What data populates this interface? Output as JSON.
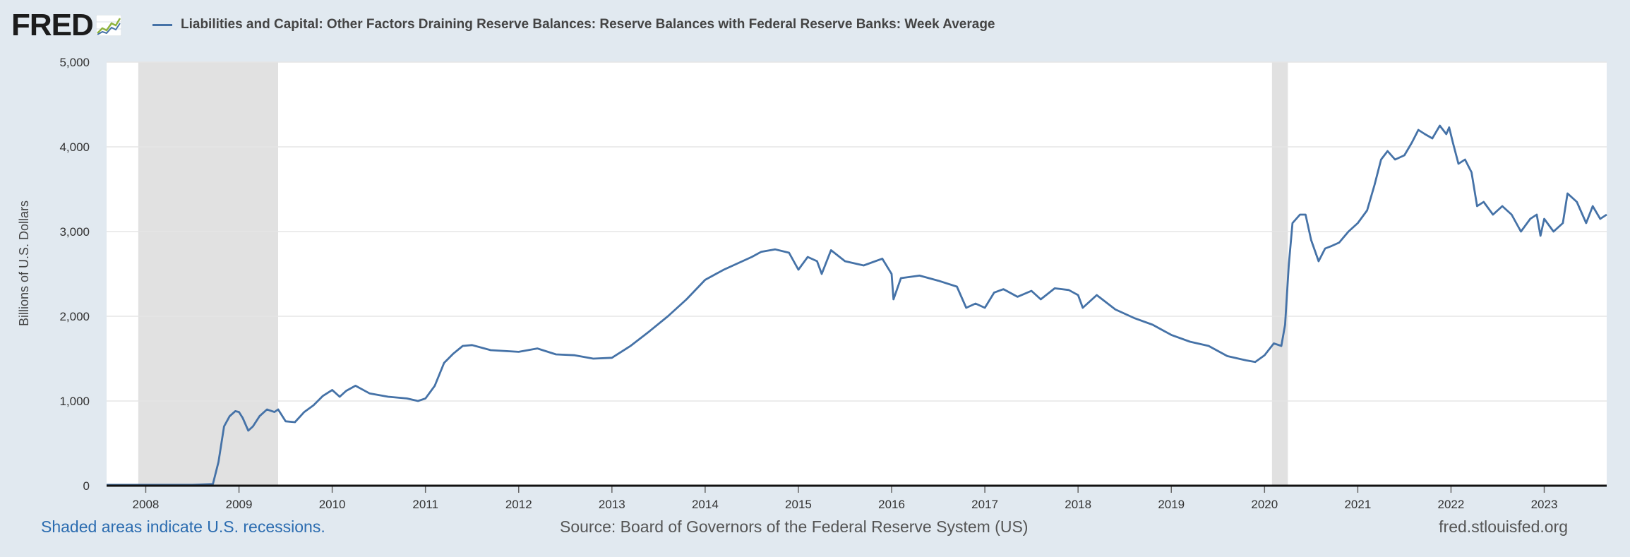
{
  "header": {
    "logo_text": "FRED",
    "series_title": "Liabilities and Capital: Other Factors Draining Reserve Balances: Reserve Balances with Federal Reserve Banks: Week Average"
  },
  "footer": {
    "recession_note": "Shaded areas indicate U.S. recessions.",
    "source": "Source: Board of Governors of the Federal Reserve System (US)",
    "site": "fred.stlouisfed.org"
  },
  "colors": {
    "background": "#e1e9f0",
    "plot_background": "#ffffff",
    "series_line": "#4572a7",
    "recession_shade": "#e1e1e1",
    "gridline": "#e6e6e6"
  },
  "chart_data": {
    "type": "line",
    "title": "Liabilities and Capital: Other Factors Draining Reserve Balances: Reserve Balances with Federal Reserve Banks: Week Average",
    "xlabel": "",
    "ylabel": "Billions of U.S. Dollars",
    "xlim": [
      2007.58,
      2023.67
    ],
    "ylim": [
      0,
      5000
    ],
    "grid": true,
    "x_ticks": [
      2008,
      2009,
      2010,
      2011,
      2012,
      2013,
      2014,
      2015,
      2016,
      2017,
      2018,
      2019,
      2020,
      2021,
      2022,
      2023
    ],
    "x_tick_labels": [
      "2008",
      "2009",
      "2010",
      "2011",
      "2012",
      "2013",
      "2014",
      "2015",
      "2016",
      "2017",
      "2018",
      "2019",
      "2020",
      "2021",
      "2022",
      "2023"
    ],
    "y_ticks": [
      0,
      1000,
      2000,
      3000,
      4000,
      5000
    ],
    "y_tick_labels": [
      "0",
      "1,000",
      "2,000",
      "3,000",
      "4,000",
      "5,000"
    ],
    "recessions": [
      [
        2007.92,
        2009.42
      ],
      [
        2020.08,
        2020.25
      ]
    ],
    "series": [
      {
        "name": "Liabilities and Capital: Other Factors Draining Reserve Balances: Reserve Balances with Federal Reserve Banks: Week Average",
        "x": [
          2007.58,
          2008.0,
          2008.5,
          2008.72,
          2008.78,
          2008.84,
          2008.9,
          2008.96,
          2009.0,
          2009.04,
          2009.1,
          2009.15,
          2009.22,
          2009.3,
          2009.38,
          2009.42,
          2009.5,
          2009.6,
          2009.7,
          2009.8,
          2009.9,
          2010.0,
          2010.08,
          2010.15,
          2010.25,
          2010.4,
          2010.6,
          2010.8,
          2010.92,
          2011.0,
          2011.1,
          2011.2,
          2011.3,
          2011.4,
          2011.5,
          2011.7,
          2012.0,
          2012.2,
          2012.4,
          2012.6,
          2012.8,
          2013.0,
          2013.2,
          2013.4,
          2013.6,
          2013.8,
          2014.0,
          2014.2,
          2014.4,
          2014.5,
          2014.6,
          2014.75,
          2014.9,
          2015.0,
          2015.1,
          2015.2,
          2015.25,
          2015.35,
          2015.5,
          2015.7,
          2015.9,
          2016.0,
          2016.02,
          2016.1,
          2016.3,
          2016.5,
          2016.7,
          2016.8,
          2016.9,
          2017.0,
          2017.1,
          2017.2,
          2017.35,
          2017.5,
          2017.6,
          2017.75,
          2017.9,
          2018.0,
          2018.05,
          2018.2,
          2018.4,
          2018.6,
          2018.8,
          2019.0,
          2019.2,
          2019.4,
          2019.6,
          2019.8,
          2019.9,
          2020.0,
          2020.1,
          2020.18,
          2020.22,
          2020.26,
          2020.3,
          2020.38,
          2020.44,
          2020.5,
          2020.58,
          2020.65,
          2020.72,
          2020.8,
          2020.9,
          2021.0,
          2021.1,
          2021.18,
          2021.25,
          2021.32,
          2021.4,
          2021.5,
          2021.58,
          2021.65,
          2021.72,
          2021.8,
          2021.88,
          2021.95,
          2021.98,
          2022.02,
          2022.08,
          2022.15,
          2022.22,
          2022.28,
          2022.35,
          2022.45,
          2022.55,
          2022.65,
          2022.75,
          2022.85,
          2022.92,
          2022.96,
          2023.0,
          2023.1,
          2023.2,
          2023.25,
          2023.35,
          2023.45,
          2023.52,
          2023.6,
          2023.67
        ],
        "values": [
          10,
          10,
          10,
          20,
          280,
          700,
          820,
          880,
          870,
          800,
          650,
          700,
          820,
          900,
          870,
          900,
          760,
          750,
          870,
          950,
          1060,
          1130,
          1050,
          1120,
          1180,
          1090,
          1050,
          1030,
          1000,
          1030,
          1180,
          1450,
          1560,
          1650,
          1660,
          1600,
          1580,
          1620,
          1550,
          1540,
          1500,
          1510,
          1650,
          1820,
          2000,
          2200,
          2430,
          2550,
          2650,
          2700,
          2760,
          2790,
          2750,
          2550,
          2700,
          2650,
          2500,
          2780,
          2650,
          2600,
          2680,
          2500,
          2200,
          2450,
          2480,
          2420,
          2350,
          2100,
          2150,
          2100,
          2280,
          2320,
          2230,
          2300,
          2200,
          2330,
          2310,
          2250,
          2100,
          2250,
          2080,
          1980,
          1900,
          1780,
          1700,
          1650,
          1530,
          1480,
          1460,
          1540,
          1680,
          1650,
          1900,
          2600,
          3100,
          3200,
          3200,
          2900,
          2650,
          2800,
          2830,
          2870,
          3000,
          3100,
          3250,
          3550,
          3850,
          3950,
          3850,
          3900,
          4050,
          4200,
          4150,
          4100,
          4250,
          4150,
          4230,
          4050,
          3800,
          3850,
          3700,
          3300,
          3350,
          3200,
          3300,
          3200,
          3000,
          3150,
          3200,
          2950,
          3150,
          3000,
          3100,
          3450,
          3350,
          3100,
          3300,
          3150,
          3200
        ]
      }
    ]
  }
}
